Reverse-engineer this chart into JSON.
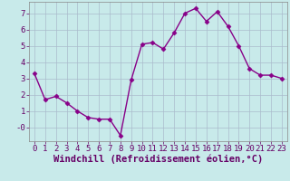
{
  "x": [
    0,
    1,
    2,
    3,
    4,
    5,
    6,
    7,
    8,
    9,
    10,
    11,
    12,
    13,
    14,
    15,
    16,
    17,
    18,
    19,
    20,
    21,
    22,
    23
  ],
  "y": [
    3.3,
    1.7,
    1.9,
    1.5,
    1.0,
    0.6,
    0.5,
    0.5,
    -0.5,
    2.9,
    5.1,
    5.2,
    4.8,
    5.8,
    7.0,
    7.3,
    6.5,
    7.1,
    6.2,
    5.0,
    3.6,
    3.2,
    3.2,
    3.0
  ],
  "line_color": "#880088",
  "marker": "D",
  "marker_size": 2.5,
  "bg_color": "#c8eaea",
  "grid_color": "#aabbcc",
  "xlabel": "Windchill (Refroidissement éolien,°C)",
  "xlabel_fontsize": 7.5,
  "ylabel_ticks": [
    0,
    1,
    2,
    3,
    4,
    5,
    6,
    7
  ],
  "ytick_labels": [
    "-0",
    "1",
    "2",
    "3",
    "4",
    "5",
    "6",
    "7"
  ],
  "ylim": [
    -0.85,
    7.7
  ],
  "xlim": [
    -0.5,
    23.5
  ],
  "xtick_labels": [
    "0",
    "1",
    "2",
    "3",
    "4",
    "5",
    "6",
    "7",
    "8",
    "9",
    "10",
    "11",
    "12",
    "13",
    "14",
    "15",
    "16",
    "17",
    "18",
    "19",
    "20",
    "21",
    "22",
    "23"
  ],
  "tick_fontsize": 6.5,
  "linewidth": 1.0,
  "xlabel_color": "#660066",
  "tick_color": "#660066"
}
